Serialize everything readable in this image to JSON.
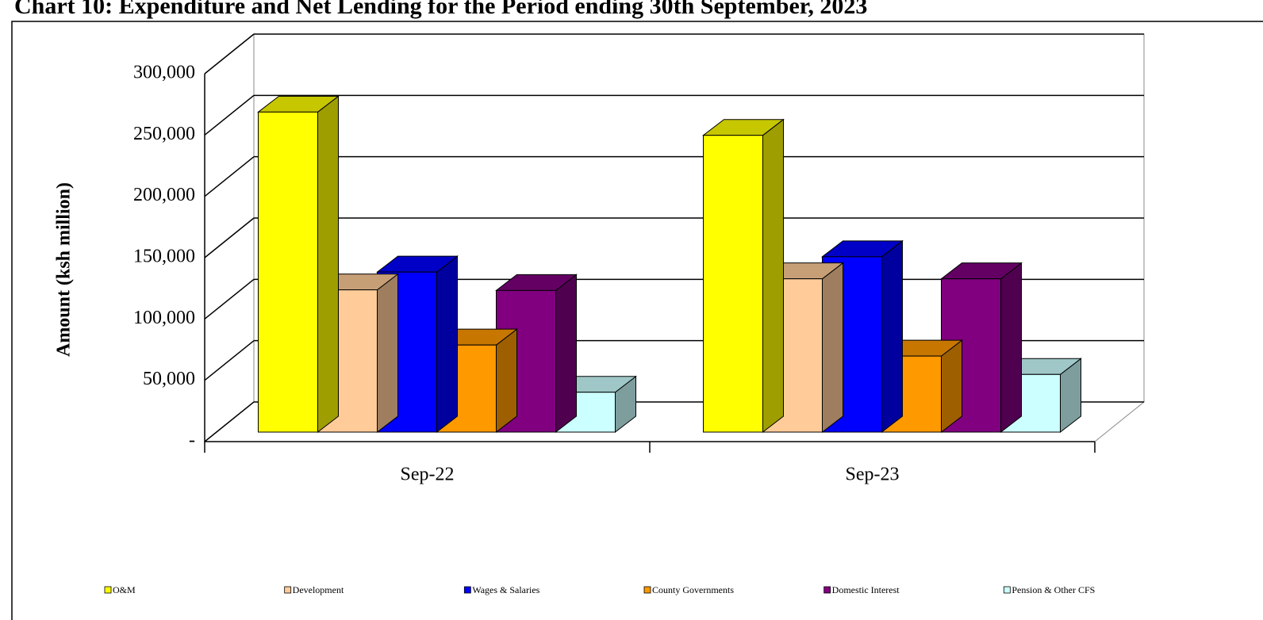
{
  "chart_data": {
    "type": "bar3d",
    "title": "Chart 10: Expenditure and Net Lending for the Period ending 30th September, 2023",
    "y_label": "Amount  (ksh million)",
    "categories": [
      "Sep-22",
      "Sep-23"
    ],
    "series": [
      {
        "name": "O&M",
        "color": "#ffff00",
        "values": [
          261000,
          242000
        ]
      },
      {
        "name": "Development",
        "color": "#ffcc99",
        "values": [
          116000,
          125000
        ]
      },
      {
        "name": "Wages & Salaries",
        "color": "#0000ff",
        "values": [
          130500,
          143000
        ]
      },
      {
        "name": "County Governments",
        "color": "#ff9900",
        "values": [
          71000,
          62000
        ]
      },
      {
        "name": "Domestic Interest",
        "color": "#800080",
        "values": [
          115500,
          125000
        ]
      },
      {
        "name": "Pension & Other CFS",
        "color": "#ccffff",
        "values": [
          32500,
          47000
        ]
      }
    ],
    "ylim": [
      0,
      300000
    ],
    "yticks": [
      {
        "value": 0,
        "label": "-"
      },
      {
        "value": 50000,
        "label": "50,000"
      },
      {
        "value": 100000,
        "label": "100,000"
      },
      {
        "value": 150000,
        "label": "150,000"
      },
      {
        "value": 200000,
        "label": "200,000"
      },
      {
        "value": 250000,
        "label": "250,000"
      },
      {
        "value": 300000,
        "label": "300,000"
      }
    ],
    "grid": true,
    "legend": "bottom"
  }
}
